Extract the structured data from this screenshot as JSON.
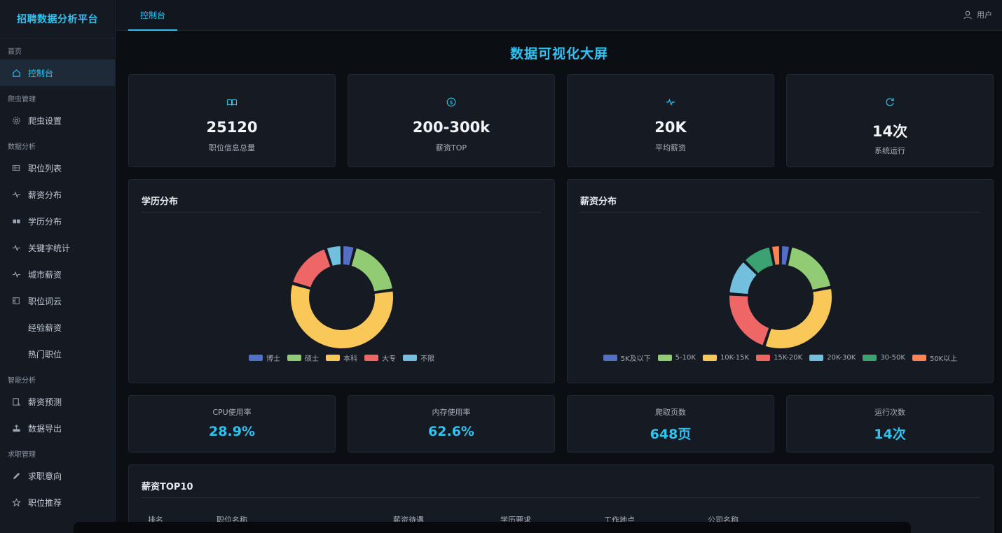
{
  "sidebar": {
    "brand": "招聘数据分析平台",
    "groups": [
      {
        "label": "首页",
        "items": [
          {
            "label": "控制台",
            "icon": "home-icon"
          }
        ]
      },
      {
        "label": "爬虫管理",
        "items": [
          {
            "label": "爬虫设置",
            "icon": "gear-icon"
          }
        ]
      },
      {
        "label": "数据分析",
        "items": [
          {
            "label": "职位列表",
            "icon": "list-icon"
          },
          {
            "label": "薪资分布",
            "icon": "pulse-icon"
          },
          {
            "label": "学历分布",
            "icon": "book-icon"
          },
          {
            "label": "关键字统计",
            "icon": "pulse-icon"
          },
          {
            "label": "城市薪资",
            "icon": "pulse-icon"
          },
          {
            "label": "职位词云",
            "icon": "cloud-doc-icon"
          },
          {
            "label": "经验薪资",
            "icon": ""
          },
          {
            "label": "热门职位",
            "icon": ""
          }
        ]
      },
      {
        "label": "智能分析",
        "items": [
          {
            "label": "薪资预测",
            "icon": "predict-icon"
          },
          {
            "label": "数据导出",
            "icon": "export-icon"
          }
        ]
      },
      {
        "label": "求职管理",
        "items": [
          {
            "label": "求职意向",
            "icon": "pencil-icon"
          },
          {
            "label": "职位推荐",
            "icon": "star-icon"
          }
        ]
      }
    ]
  },
  "header": {
    "tab": "控制台",
    "user": "用户"
  },
  "main": {
    "title": "数据可视化大屏",
    "stats": [
      {
        "value": "25120",
        "label": "职位信息总量",
        "icon": "book-icon"
      },
      {
        "value": "200-300k",
        "label": "薪资TOP",
        "icon": "dollar-icon"
      },
      {
        "value": "20K",
        "label": "平均薪资",
        "icon": "pulse-icon"
      },
      {
        "value": "14次",
        "label": "系统运行",
        "icon": "refresh-icon"
      }
    ],
    "panels": {
      "education": "学历分布",
      "salary": "薪资分布"
    },
    "metrics": [
      {
        "label": "CPU使用率",
        "value": "28.9%"
      },
      {
        "label": "内存使用率",
        "value": "62.6%"
      },
      {
        "label": "爬取页数",
        "value": "648页"
      },
      {
        "label": "运行次数",
        "value": "14次"
      }
    ],
    "top10": {
      "title": "薪资TOP10",
      "columns": [
        "排名",
        "职位名称",
        "薪资待遇",
        "学历要求",
        "工作地点",
        "公司名称"
      ]
    }
  },
  "chart_data": [
    {
      "type": "pie",
      "title": "学历分布",
      "categories": [
        "博士",
        "硕士",
        "本科",
        "大专",
        "不限"
      ],
      "values": [
        4,
        18,
        55,
        15,
        5
      ],
      "colors": [
        "#5470c6",
        "#91cc75",
        "#fac858",
        "#ee6666",
        "#73c0de"
      ],
      "legend": "bottom"
    },
    {
      "type": "pie",
      "title": "薪资分布",
      "categories": [
        "5K及以下",
        "5-10K",
        "10K-15K",
        "15K-20K",
        "20K-30K",
        "30-50K",
        "50K以上"
      ],
      "values": [
        3,
        18,
        32,
        20,
        11,
        9,
        3
      ],
      "colors": [
        "#5470c6",
        "#91cc75",
        "#fac858",
        "#ee6666",
        "#73c0de",
        "#3ba272",
        "#fc8452"
      ],
      "legend": "bottom"
    }
  ]
}
